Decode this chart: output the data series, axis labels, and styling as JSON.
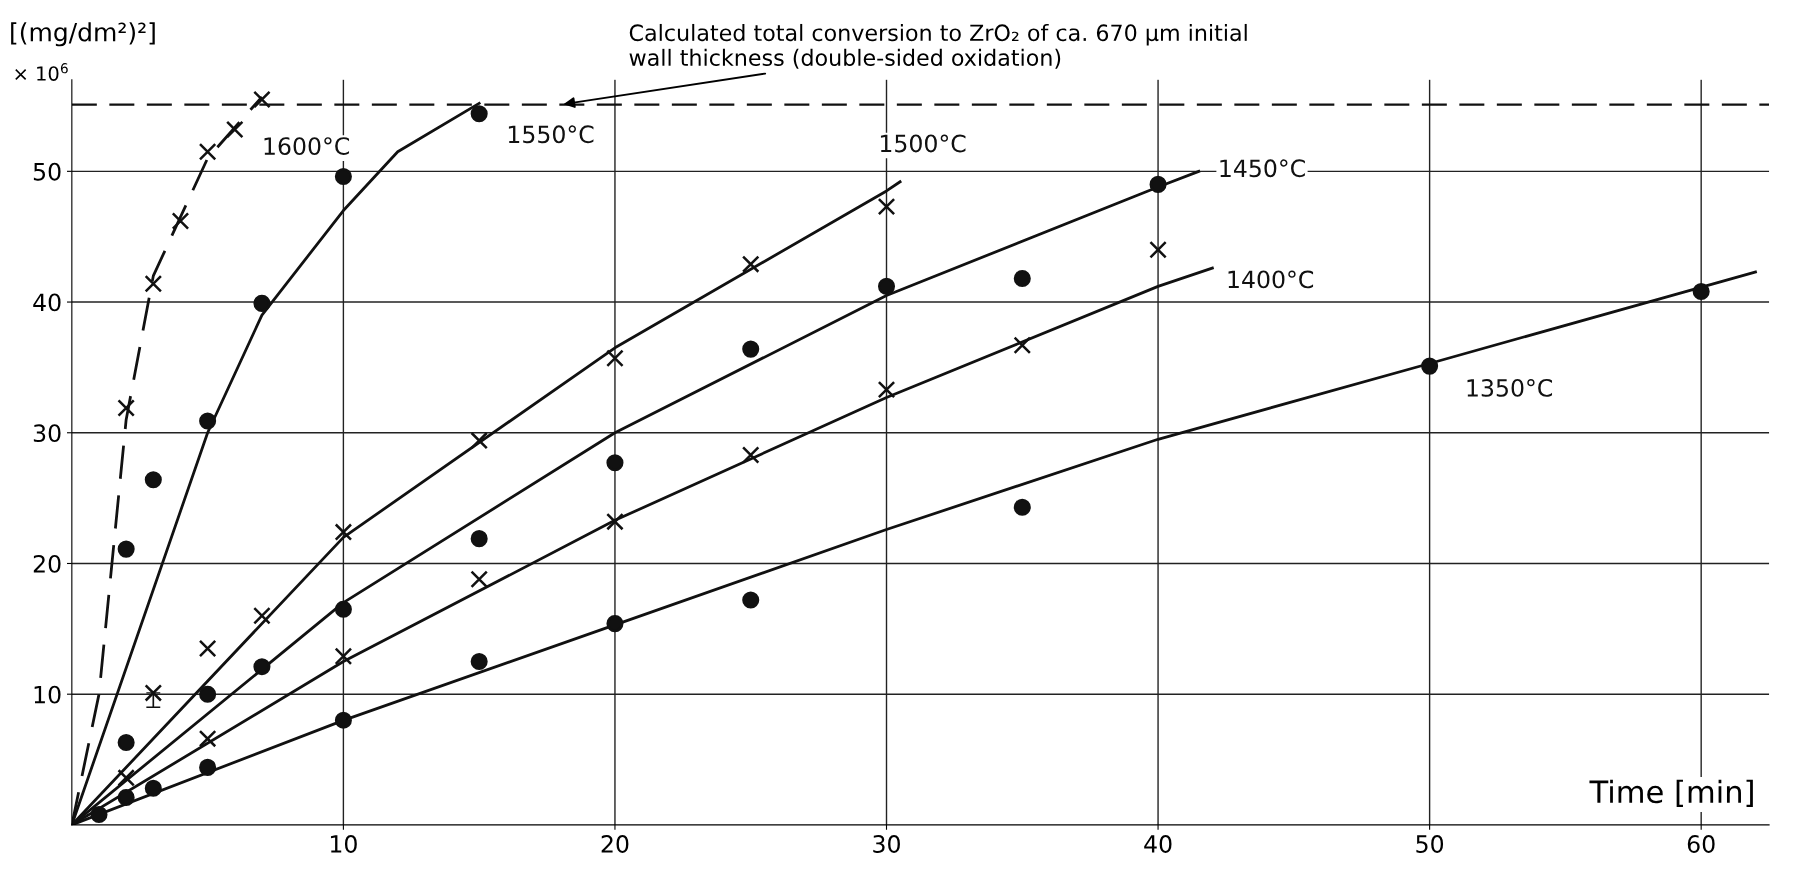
{
  "chart_data": {
    "type": "scatter",
    "xlabel": "Time [min]",
    "ylabel": "[(mg/dm²)²]",
    "xlim": [
      0,
      62.5
    ],
    "ylim": [
      0,
      57
    ],
    "xticks": [
      10,
      20,
      30,
      40,
      50,
      60
    ],
    "yticks": [
      10,
      20,
      30,
      40,
      50
    ],
    "grid": true,
    "series": [
      {
        "type": "scatter",
        "name": "1350°C",
        "marker": "circle",
        "color": "#111111",
        "x": [
          1,
          2,
          3,
          5,
          10,
          15,
          20,
          25,
          35,
          50,
          60
        ],
        "values": [
          0.8,
          2.1,
          2.8,
          4.4,
          8.0,
          12.5,
          15.4,
          17.2,
          24.3,
          35.1,
          40.8
        ]
      },
      {
        "type": "line",
        "color": "#111111",
        "line_style": "solid",
        "x": [
          0,
          10,
          20,
          30,
          40,
          50,
          62
        ],
        "values": [
          0,
          8,
          15.3,
          22.6,
          29.5,
          35.3,
          42.3
        ]
      },
      {
        "type": "scatter",
        "name": "1400°C",
        "marker": "cross",
        "color": "#111111",
        "x": [
          2,
          5,
          10,
          15,
          20,
          25,
          30,
          35,
          40
        ],
        "values": [
          3.6,
          6.6,
          12.9,
          18.8,
          23.2,
          28.3,
          33.3,
          36.7,
          44.0
        ]
      },
      {
        "type": "line",
        "color": "#111111",
        "line_style": "solid",
        "x": [
          0,
          10,
          20,
          30,
          40,
          42
        ],
        "values": [
          0,
          12.5,
          23.3,
          32.7,
          41.2,
          42.6
        ]
      },
      {
        "type": "scatter",
        "name": "1450°C",
        "marker": "circle",
        "color": "#111111",
        "x": [
          2,
          5,
          7,
          10,
          15,
          20,
          25,
          30,
          35,
          40
        ],
        "values": [
          6.3,
          10.0,
          12.1,
          16.5,
          21.9,
          27.7,
          36.4,
          41.2,
          41.8,
          49.0
        ]
      },
      {
        "type": "line",
        "color": "#111111",
        "line_style": "solid",
        "x": [
          0,
          10,
          20,
          30,
          40,
          41.5
        ],
        "values": [
          0,
          17,
          30,
          40.5,
          48.8,
          50
        ]
      },
      {
        "type": "scatter",
        "name": "1500°C",
        "marker": "cross",
        "color": "#111111",
        "x": [
          3,
          5,
          7,
          10,
          15,
          20,
          25,
          30
        ],
        "values": [
          10.1,
          13.5,
          16.0,
          22.4,
          29.4,
          35.7,
          42.9,
          47.3
        ],
        "errors": [
          [
            9.0,
            10.1
          ],
          null,
          null,
          null,
          null,
          null,
          null,
          null
        ]
      },
      {
        "type": "line",
        "color": "#111111",
        "line_style": "solid",
        "x": [
          0,
          10,
          20,
          30,
          30.5
        ],
        "values": [
          0,
          22,
          36.5,
          48.5,
          49.2
        ]
      },
      {
        "type": "scatter",
        "name": "1550°C",
        "marker": "circle",
        "color": "#111111",
        "x": [
          2,
          3,
          5,
          7,
          10,
          15
        ],
        "values": [
          21.1,
          26.4,
          30.9,
          39.9,
          49.6,
          54.4
        ]
      },
      {
        "type": "line",
        "color": "#111111",
        "line_style": "solid",
        "x": [
          0,
          5,
          7,
          10,
          12,
          15
        ],
        "values": [
          0,
          30,
          39,
          47,
          51.5,
          55.2
        ]
      },
      {
        "type": "scatter",
        "name": "1600°C",
        "marker": "cross",
        "color": "#111111",
        "x": [
          2,
          3,
          4,
          5,
          6,
          7
        ],
        "values": [
          31.9,
          41.4,
          46.2,
          51.5,
          53.2,
          55.5
        ]
      },
      {
        "type": "line",
        "color": "#111111",
        "line_style": "dashed",
        "x": [
          0,
          1,
          2,
          3,
          5,
          7
        ],
        "values": [
          0,
          10,
          31,
          42,
          51,
          55.7
        ]
      }
    ],
    "ref_lines": [
      {
        "axis": "y",
        "value": 55.1,
        "color": "#111111",
        "line_style": "dashed"
      }
    ],
    "annotations": [
      "× 10$^{6}$",
      {
        "text": "Calculated total conversion to ZrO₂ of ca. 670 µm initial\nwall thickness (double-sided oxidation)",
        "x": 18,
        "y": 55.1
      }
    ]
  }
}
